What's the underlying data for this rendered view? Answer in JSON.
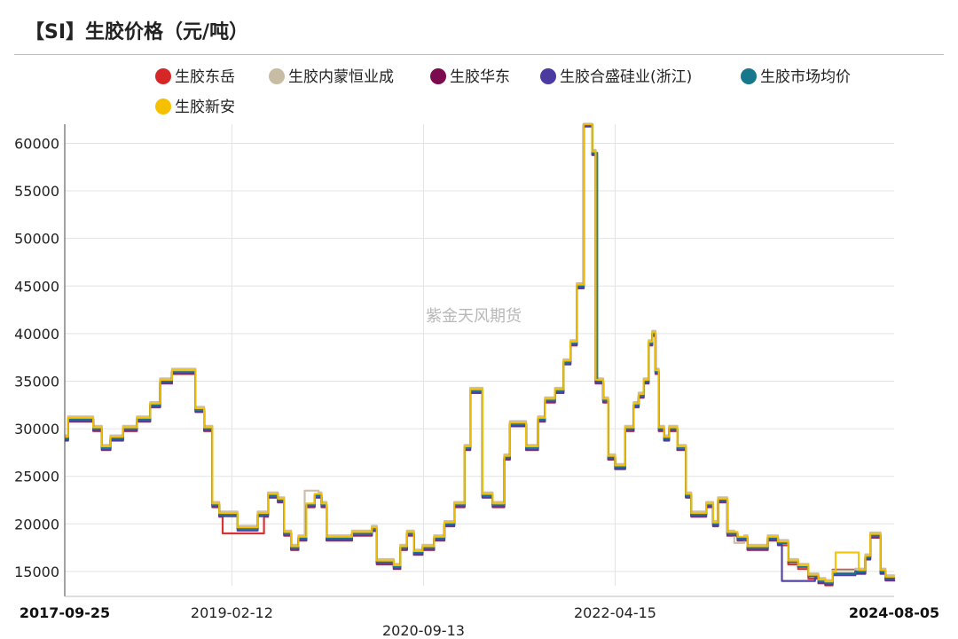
{
  "title": "【SI】生胶价格（元/吨）",
  "watermark": "紫金天风期货",
  "chart_data": {
    "type": "line",
    "title": "【SI】生胶价格（元/吨）",
    "xlabel": "",
    "ylabel": "",
    "x_range": [
      "2017-09-25",
      "2024-08-05"
    ],
    "ylim": [
      13500,
      62000
    ],
    "y_ticks": [
      15000,
      20000,
      25000,
      30000,
      35000,
      40000,
      45000,
      50000,
      55000,
      60000
    ],
    "x_ticks": [
      {
        "label": "2017-09-25",
        "bold": true
      },
      {
        "label": "2019-02-12",
        "bold": false
      },
      {
        "label": "2020-09-13",
        "bold": false
      },
      {
        "label": "2022-04-15",
        "bold": false
      },
      {
        "label": "2024-08-05",
        "bold": true
      }
    ],
    "grid": true,
    "legend_position": "top",
    "series": [
      {
        "name": "生胶东岳",
        "color": "#d62728",
        "offset": -250,
        "hold": [
          [
            "2019-01-15",
            "2019-05-20",
            19000
          ],
          [
            "2024-02-01",
            "2024-04-10",
            15200
          ]
        ]
      },
      {
        "name": "生胶内蒙恒业成",
        "color": "#c9bca5",
        "offset": 300,
        "hold": [
          [
            "2019-09-20",
            "2019-11-01",
            23500
          ],
          [
            "2023-04-10",
            "2023-05-10",
            18000
          ]
        ]
      },
      {
        "name": "生胶华东",
        "color": "#7b0a4e",
        "offset": 0,
        "hold": [
          [
            "2022-01-10",
            "2022-02-05",
            62000
          ]
        ]
      },
      {
        "name": "生胶合盛硅业(浙江)",
        "color": "#4b3aa0",
        "offset": -200,
        "hold": [
          [
            "2023-09-01",
            "2023-12-10",
            14000
          ]
        ]
      },
      {
        "name": "生胶市场均价",
        "color": "#17788c",
        "offset": 0,
        "hold": [
          [
            "2022-02-05",
            "2022-02-20",
            59000
          ]
        ]
      },
      {
        "name": "生胶新安",
        "color": "#f5c000",
        "offset": 150,
        "hold": [
          [
            "2024-02-10",
            "2024-04-20",
            17000
          ]
        ]
      }
    ],
    "base_points": [
      [
        "2017-09-25",
        29000
      ],
      [
        "2017-10-05",
        31000
      ],
      [
        "2017-11-20",
        31000
      ],
      [
        "2017-12-20",
        30000
      ],
      [
        "2018-01-15",
        28000
      ],
      [
        "2018-02-10",
        29000
      ],
      [
        "2018-03-20",
        30000
      ],
      [
        "2018-05-01",
        31000
      ],
      [
        "2018-06-10",
        32500
      ],
      [
        "2018-07-10",
        35000
      ],
      [
        "2018-08-15",
        36000
      ],
      [
        "2018-10-01",
        36000
      ],
      [
        "2018-10-25",
        32000
      ],
      [
        "2018-11-20",
        30000
      ],
      [
        "2018-12-15",
        22000
      ],
      [
        "2019-01-05",
        21000
      ],
      [
        "2019-02-15",
        21000
      ],
      [
        "2019-03-01",
        19500
      ],
      [
        "2019-04-01",
        19500
      ],
      [
        "2019-05-01",
        21000
      ],
      [
        "2019-06-01",
        23000
      ],
      [
        "2019-07-01",
        22500
      ],
      [
        "2019-07-20",
        19000
      ],
      [
        "2019-08-10",
        17500
      ],
      [
        "2019-09-01",
        18500
      ],
      [
        "2019-09-25",
        22000
      ],
      [
        "2019-10-20",
        23000
      ],
      [
        "2019-11-10",
        22000
      ],
      [
        "2019-11-25",
        18500
      ],
      [
        "2020-01-05",
        18500
      ],
      [
        "2020-02-10",
        19000
      ],
      [
        "2020-04-10",
        19500
      ],
      [
        "2020-04-25",
        16000
      ],
      [
        "2020-06-01",
        16000
      ],
      [
        "2020-06-15",
        15500
      ],
      [
        "2020-07-05",
        17500
      ],
      [
        "2020-07-25",
        19000
      ],
      [
        "2020-08-15",
        17000
      ],
      [
        "2020-09-10",
        17500
      ],
      [
        "2020-10-15",
        18500
      ],
      [
        "2020-11-15",
        20000
      ],
      [
        "2020-12-15",
        22000
      ],
      [
        "2021-01-15",
        28000
      ],
      [
        "2021-02-01",
        34000
      ],
      [
        "2021-02-20",
        34000
      ],
      [
        "2021-03-10",
        23000
      ],
      [
        "2021-04-10",
        22000
      ],
      [
        "2021-05-01",
        22000
      ],
      [
        "2021-05-15",
        27000
      ],
      [
        "2021-06-01",
        30500
      ],
      [
        "2021-07-01",
        30500
      ],
      [
        "2021-07-20",
        28000
      ],
      [
        "2021-08-10",
        28000
      ],
      [
        "2021-08-25",
        31000
      ],
      [
        "2021-09-15",
        33000
      ],
      [
        "2021-10-15",
        34000
      ],
      [
        "2021-11-10",
        37000
      ],
      [
        "2021-12-01",
        39000
      ],
      [
        "2021-12-20",
        45000
      ],
      [
        "2022-01-10",
        62000
      ],
      [
        "2022-02-05",
        59000
      ],
      [
        "2022-02-15",
        35000
      ],
      [
        "2022-03-10",
        33000
      ],
      [
        "2022-03-25",
        27000
      ],
      [
        "2022-04-15",
        26000
      ],
      [
        "2022-05-15",
        30000
      ],
      [
        "2022-06-10",
        32500
      ],
      [
        "2022-06-25",
        33500
      ],
      [
        "2022-07-10",
        35000
      ],
      [
        "2022-07-25",
        39000
      ],
      [
        "2022-08-05",
        40000
      ],
      [
        "2022-08-15",
        36000
      ],
      [
        "2022-08-25",
        30000
      ],
      [
        "2022-09-10",
        29000
      ],
      [
        "2022-09-25",
        30000
      ],
      [
        "2022-10-20",
        28000
      ],
      [
        "2022-11-15",
        23000
      ],
      [
        "2022-12-01",
        21000
      ],
      [
        "2023-01-15",
        22000
      ],
      [
        "2023-02-05",
        20000
      ],
      [
        "2023-02-20",
        22500
      ],
      [
        "2023-03-20",
        19000
      ],
      [
        "2023-04-20",
        18500
      ],
      [
        "2023-05-20",
        17500
      ],
      [
        "2023-06-20",
        17500
      ],
      [
        "2023-07-20",
        18500
      ],
      [
        "2023-08-20",
        18000
      ],
      [
        "2023-09-20",
        16000
      ],
      [
        "2023-10-20",
        15500
      ],
      [
        "2023-11-20",
        14500
      ],
      [
        "2023-12-20",
        14000
      ],
      [
        "2024-01-10",
        13800
      ],
      [
        "2024-02-01",
        14800
      ],
      [
        "2024-04-10",
        15000
      ],
      [
        "2024-05-10",
        16500
      ],
      [
        "2024-05-25",
        18800
      ],
      [
        "2024-06-10",
        18800
      ],
      [
        "2024-06-25",
        15000
      ],
      [
        "2024-07-10",
        14300
      ],
      [
        "2024-08-05",
        14200
      ]
    ]
  }
}
